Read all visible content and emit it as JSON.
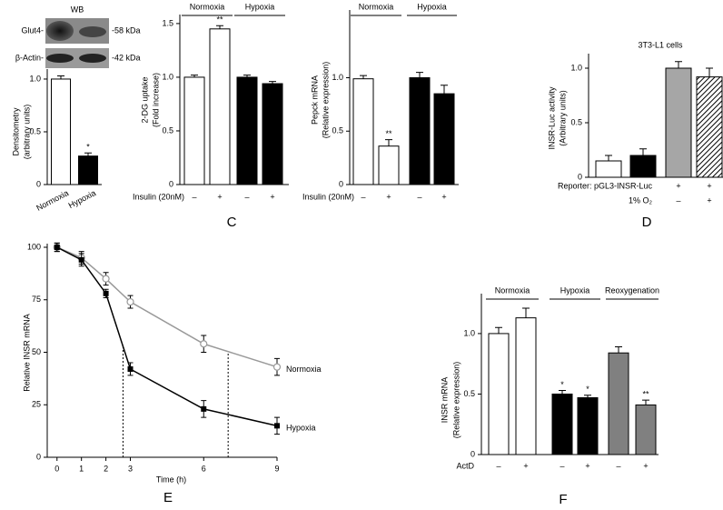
{
  "chart_data": [
    {
      "type": "bar",
      "ylabel": [
        "Densitometry",
        "(arbitrary units)"
      ],
      "inset": {
        "title": "WB",
        "bands": [
          "Glut4-",
          "β-Actin-"
        ],
        "sizes": [
          "-58 kDa",
          "-42 kDa"
        ]
      },
      "categories": [
        "Normoxia",
        "Hypoxia"
      ],
      "values": [
        1.0,
        0.27
      ],
      "errors": [
        0.03,
        0.03
      ],
      "colors": [
        "#ffffff",
        "#000000"
      ],
      "annotations": [
        null,
        "*"
      ],
      "ylim": [
        0,
        1.06
      ],
      "yticks": [
        0,
        0.5,
        {
          "value": 1,
          "label": "1.0"
        }
      ]
    },
    {
      "type": "bar",
      "ylabel": [
        "2-DG uptake",
        "(Fold increase)"
      ],
      "groups": [
        "Normoxia",
        "Hypoxia"
      ],
      "category_label": "Insulin (20nM)",
      "categories": [
        "–",
        "+",
        "–",
        "+"
      ],
      "values": [
        1.0,
        1.45,
        1.0,
        0.94
      ],
      "errors": [
        0.02,
        0.03,
        0.02,
        0.02
      ],
      "colors": [
        "#ffffff",
        "#ffffff",
        "#000000",
        "#000000"
      ],
      "annotations": [
        null,
        "**",
        null,
        null
      ],
      "ylim": [
        0,
        1.55
      ],
      "yticks": [
        0,
        0.5,
        {
          "value": 1,
          "label": "1.0"
        },
        1.5
      ],
      "panel_label": "C"
    },
    {
      "type": "bar",
      "ylabel": [
        "Pepck mRNA",
        "(Relative expression)"
      ],
      "groups": [
        "Normoxia",
        "Hypoxia"
      ],
      "category_label": "Insulin (20nM)",
      "categories": [
        "–",
        "+",
        "–",
        "+"
      ],
      "values": [
        0.99,
        0.36,
        1.0,
        0.85
      ],
      "errors": [
        0.03,
        0.06,
        0.05,
        0.08
      ],
      "colors": [
        "#ffffff",
        "#ffffff",
        "#000000",
        "#000000"
      ],
      "annotations": [
        null,
        "**",
        null,
        null
      ],
      "ylim": [
        0,
        1.6
      ],
      "yticks": [
        0,
        0.5,
        {
          "value": 1,
          "label": "1.0"
        }
      ]
    },
    {
      "type": "bar",
      "title": "3T3-L1 cells",
      "ylabel": [
        "INSR-Luc activity",
        "(Arbitrary units)"
      ],
      "rows": [
        {
          "label": "Reporter: pGL3-INSR-Luc",
          "values": [
            null,
            null,
            "+",
            "+"
          ]
        },
        {
          "label": "1% O₂",
          "values": [
            null,
            null,
            "–",
            "+"
          ]
        }
      ],
      "values": [
        0.15,
        0.2,
        1.0,
        0.92
      ],
      "errors": [
        0.05,
        0.06,
        0.06,
        0.08
      ],
      "colors": [
        "#ffffff",
        "#000000",
        "#a6a6a6",
        "#ffffff"
      ],
      "hatch": [
        false,
        false,
        false,
        true
      ],
      "ylim": [
        0,
        1.1
      ],
      "yticks": [
        0,
        0.5,
        {
          "value": 1,
          "label": "1.0"
        }
      ],
      "panel_label": "D"
    },
    {
      "type": "line",
      "xlabel": "Time (h)",
      "ylabel": [
        "Relative INSR mRNA"
      ],
      "x": [
        0,
        1,
        2,
        3,
        6,
        9
      ],
      "series": [
        {
          "name": "Normoxia",
          "color": "#999999",
          "marker": "circle",
          "values": [
            100,
            95,
            85,
            74,
            54,
            43
          ],
          "errors": [
            2,
            3,
            3,
            3,
            4,
            4
          ],
          "dotted_x": 7.0
        },
        {
          "name": "Hypoxia",
          "color": "#000000",
          "marker": "square",
          "values": [
            100,
            94,
            78,
            42,
            23,
            15
          ],
          "errors": [
            2,
            3,
            2,
            3,
            4,
            4
          ],
          "dotted_x": 2.7
        }
      ],
      "xlim": [
        -0.4,
        9
      ],
      "xticks": [
        0,
        1,
        2,
        3,
        6,
        9
      ],
      "ylim": [
        0,
        100
      ],
      "yticks": [
        0,
        25,
        50,
        75,
        100
      ],
      "panel_label": "E"
    },
    {
      "type": "bar",
      "ylabel": [
        "INSR mRNA",
        "(Relative expression)"
      ],
      "groups": [
        "Normoxia",
        "Hypoxia",
        "Reoxygenation"
      ],
      "category_label": "ActD",
      "categories": [
        "–",
        "+",
        "–",
        "+",
        "–",
        "+"
      ],
      "values": [
        1.0,
        1.13,
        0.5,
        0.47,
        0.84,
        0.41
      ],
      "errors": [
        0.05,
        0.08,
        0.03,
        0.02,
        0.05,
        0.04
      ],
      "colors": [
        "#ffffff",
        "#ffffff",
        "#000000",
        "#000000",
        "#808080",
        "#808080"
      ],
      "annotations": [
        null,
        null,
        "*",
        "*",
        null,
        "**"
      ],
      "ylim": [
        0,
        1.3
      ],
      "yticks": [
        0,
        0.5,
        {
          "value": 1,
          "label": "1.0"
        }
      ],
      "panel_label": "F"
    }
  ]
}
